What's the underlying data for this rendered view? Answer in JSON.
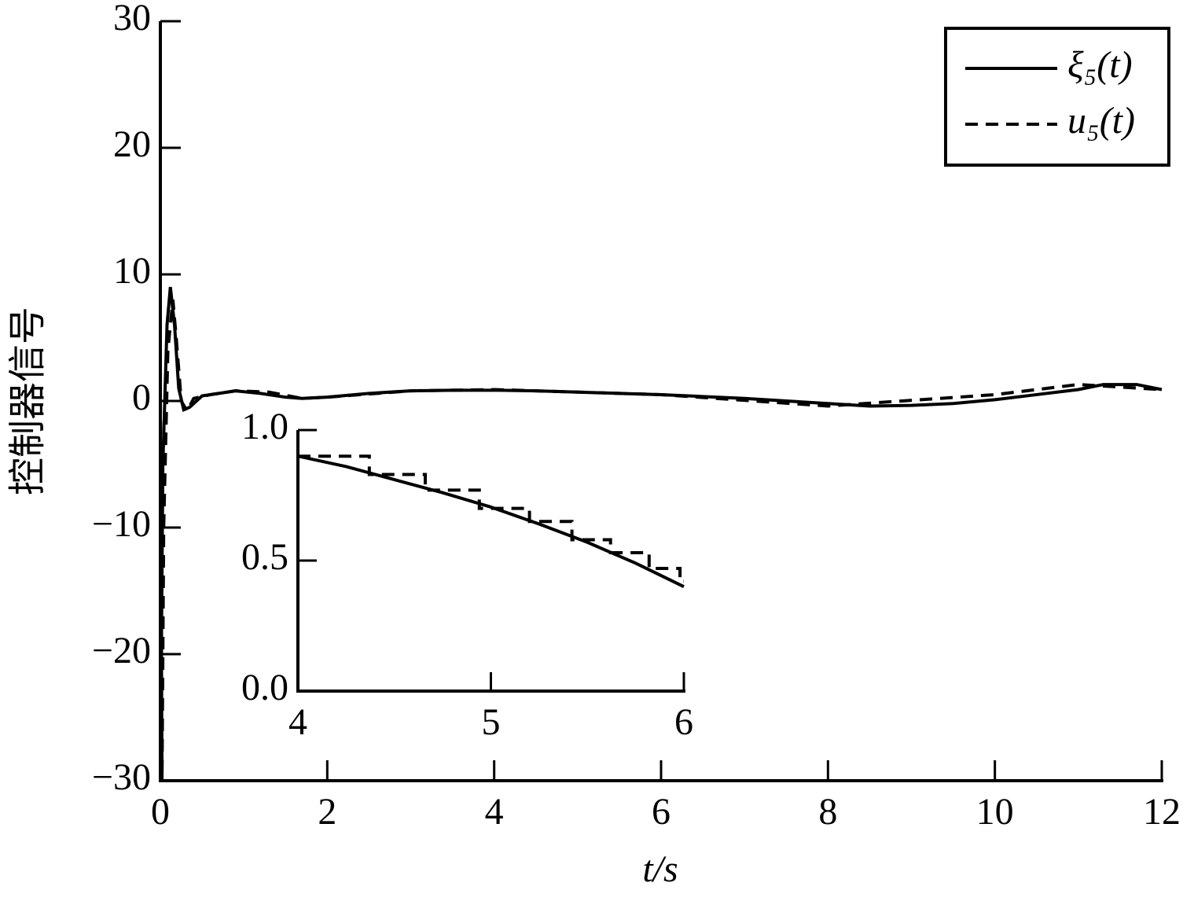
{
  "chart_data": [
    {
      "type": "line",
      "xlabel": "t/s",
      "ylabel": "控制器信号",
      "xlim": [
        0,
        12
      ],
      "ylim": [
        -30,
        30
      ],
      "xticks": [
        0,
        2,
        4,
        6,
        8,
        10,
        12
      ],
      "yticks": [
        {
          "value": -30,
          "label": "−30"
        },
        {
          "value": -20,
          "label": "−20"
        },
        {
          "value": -10,
          "label": "−10"
        },
        0,
        10,
        20,
        30
      ],
      "legend": "upper right",
      "series": [
        {
          "name": "ξ₅(t)",
          "color": "#000000",
          "dash": false,
          "x": [
            0,
            0.03,
            0.08,
            0.12,
            0.17,
            0.22,
            0.28,
            0.35,
            0.5,
            0.7,
            0.9,
            1.2,
            1.5,
            1.7,
            2,
            2.5,
            3,
            3.5,
            4,
            4.5,
            5,
            5.5,
            6,
            6.5,
            7,
            7.5,
            8,
            8.5,
            9,
            9.5,
            10,
            10.5,
            11,
            11.3,
            11.7,
            12
          ],
          "values": [
            -30,
            -5,
            6,
            9,
            6,
            1,
            -0.7,
            -0.5,
            0.4,
            0.6,
            0.8,
            0.6,
            0.3,
            0.2,
            0.3,
            0.6,
            0.8,
            0.85,
            0.85,
            0.8,
            0.7,
            0.6,
            0.5,
            0.35,
            0.2,
            0,
            -0.2,
            -0.4,
            -0.35,
            -0.2,
            0.1,
            0.5,
            0.9,
            1.3,
            1.3,
            0.9
          ]
        },
        {
          "name": "u₅(t)",
          "color": "#000000",
          "dash": true,
          "x": [
            0,
            0.02,
            0.04,
            0.09,
            0.15,
            0.19,
            0.25,
            0.32,
            0.4,
            0.6,
            0.9,
            1.3,
            1.7,
            2,
            3,
            4,
            6,
            8,
            10,
            11,
            12
          ],
          "values": [
            0,
            -30,
            -10,
            4,
            8,
            5,
            0,
            -0.8,
            0.2,
            0.5,
            0.8,
            0.7,
            0.2,
            0.3,
            0.8,
            0.9,
            0.5,
            -0.4,
            0.5,
            1.3,
            0.9
          ]
        }
      ]
    },
    {
      "type": "line",
      "xlim": [
        4,
        6
      ],
      "ylim": [
        0,
        1
      ],
      "xticks": [
        4,
        5,
        6
      ],
      "yticks": [
        {
          "value": 0,
          "label": "0.0"
        },
        {
          "value": 0.5,
          "label": "0.5"
        },
        {
          "value": 1,
          "label": "1.0"
        }
      ],
      "series": [
        {
          "color": "#000000",
          "dash": false,
          "x": [
            4,
            4.25,
            4.5,
            4.75,
            5,
            5.25,
            5.5,
            5.75,
            6
          ],
          "values": [
            0.9,
            0.86,
            0.81,
            0.76,
            0.705,
            0.64,
            0.57,
            0.49,
            0.4
          ]
        },
        {
          "color": "#000000",
          "dash": true,
          "x": [
            4,
            4.37,
            4.37,
            4.66,
            4.66,
            4.94,
            4.94,
            5.2,
            5.2,
            5.42,
            5.42,
            5.62,
            5.62,
            5.82,
            5.82,
            5.98,
            5.98,
            6
          ],
          "values": [
            0.9,
            0.9,
            0.83,
            0.83,
            0.77,
            0.77,
            0.7,
            0.7,
            0.65,
            0.65,
            0.58,
            0.58,
            0.53,
            0.53,
            0.47,
            0.47,
            0.42,
            0.42
          ]
        }
      ]
    }
  ]
}
